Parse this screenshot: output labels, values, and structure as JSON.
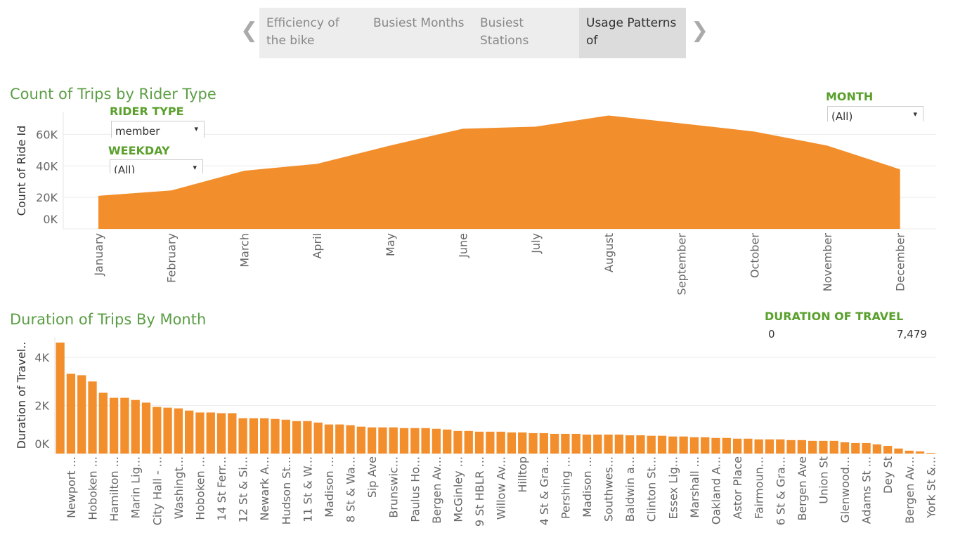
{
  "tabs": [
    "Efficiency of the bike",
    "Busiest Months",
    "Busiest Stations",
    "Usage Patterns of"
  ],
  "filters": [
    {
      "label": "RIDER TYPE",
      "value": "member"
    },
    {
      "label": "WEEKDAY",
      "value": "(All)"
    },
    {
      "label": "MONTH",
      "value": "(All)"
    }
  ],
  "range_filter": {
    "label": "DURATION OF TRAVEL",
    "min": "0",
    "max": "7,479"
  },
  "chart_data": [
    {
      "type": "area",
      "title": "Count of Trips by Rider Type",
      "y_label": "Count of Ride Id",
      "color": "#f28e2b",
      "categories": [
        "January",
        "February",
        "March",
        "April",
        "May",
        "June",
        "July",
        "August",
        "September",
        "October",
        "November",
        "December"
      ],
      "values": [
        21000,
        24400,
        36900,
        41300,
        52900,
        63600,
        64900,
        72000,
        67000,
        61800,
        52900,
        37800
      ],
      "ylim": [
        0,
        74000
      ],
      "yticks": [
        {
          "value": 0,
          "label": "0K"
        },
        {
          "value": 20000,
          "label": "20K"
        },
        {
          "value": 40000,
          "label": "40K"
        },
        {
          "value": 60000,
          "label": "60K"
        }
      ],
      "grid": true
    },
    {
      "type": "bar",
      "title": "Duration of Trips By Month",
      "y_label": "Duration of Travel..",
      "color": "#f28e2b",
      "categories": [
        null,
        "Newport ...",
        null,
        "Hoboken ...",
        null,
        "Hamilton ...",
        null,
        "Marin Lig...",
        null,
        "City Hall - ...",
        null,
        "Washingt...",
        null,
        "Hoboken ...",
        null,
        "14 St Ferr...",
        null,
        "12 St & Si...",
        null,
        "Newark A...",
        null,
        "Hudson St...",
        null,
        "11 St & W...",
        null,
        "Madison ...",
        null,
        "8 St & Wa...",
        null,
        "Sip Ave",
        null,
        "Brunswic...",
        null,
        "Paulus Ho...",
        null,
        "Bergen Av...",
        null,
        "McGinley ...",
        null,
        "9 St HBLR ...",
        null,
        "Willow Av...",
        null,
        "Hilltop",
        null,
        "4 St & Gra...",
        null,
        "Pershing ...",
        null,
        "Madison ...",
        null,
        "Southwes...",
        null,
        "Baldwin a...",
        null,
        "Clinton St...",
        null,
        "Essex Lig...",
        null,
        "Marshall ...",
        null,
        "Oakland A...",
        null,
        "Astor Place",
        null,
        "Fairmoun...",
        null,
        "6 St & Gra...",
        null,
        "Bergen Ave",
        null,
        "Union St",
        null,
        "Glenwood...",
        null,
        "Adams St ...",
        null,
        "Dey St",
        null,
        "Bergen Av...",
        null,
        "York St &..."
      ],
      "values": [
        4620,
        3320,
        3260,
        3000,
        2530,
        2320,
        2320,
        2230,
        2120,
        1940,
        1910,
        1880,
        1790,
        1710,
        1710,
        1680,
        1680,
        1470,
        1470,
        1470,
        1440,
        1410,
        1350,
        1350,
        1290,
        1210,
        1210,
        1180,
        1120,
        1090,
        1090,
        1090,
        1060,
        1060,
        1060,
        1030,
        1000,
        940,
        940,
        910,
        910,
        910,
        880,
        880,
        850,
        850,
        820,
        820,
        820,
        790,
        790,
        790,
        790,
        760,
        760,
        740,
        740,
        710,
        710,
        680,
        680,
        650,
        650,
        620,
        620,
        590,
        590,
        590,
        560,
        560,
        530,
        530,
        530,
        470,
        440,
        440,
        380,
        320,
        210,
        120,
        90,
        30
      ],
      "ylim": [
        0,
        4850
      ],
      "yticks": [
        {
          "value": 0,
          "label": "0K"
        },
        {
          "value": 2000,
          "label": "2K"
        },
        {
          "value": 4000,
          "label": "4K"
        }
      ],
      "grid": true
    }
  ]
}
